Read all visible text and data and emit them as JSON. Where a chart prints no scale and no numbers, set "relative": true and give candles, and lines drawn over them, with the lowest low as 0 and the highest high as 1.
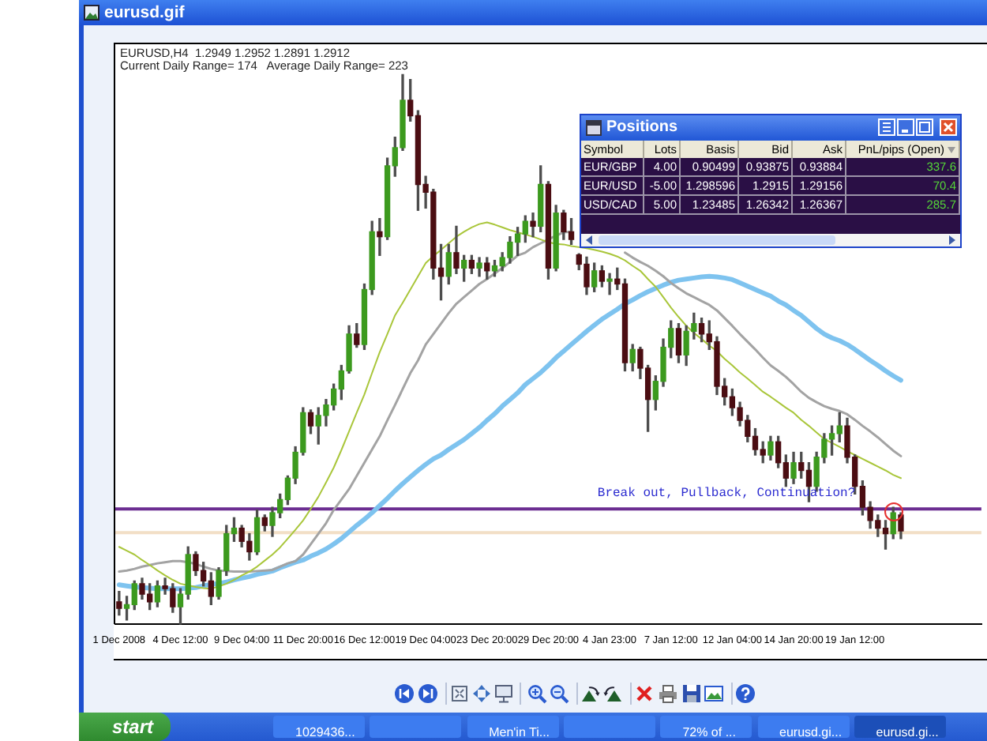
{
  "chart_data": [
    {
      "type": "candlestick",
      "title": "EURUSD,H4  1.2949 1.2952 1.2891 1.2912",
      "subtitle": "Current Daily Range= 174   Average Daily Range= 223",
      "relative": true,
      "categories": [
        "1 Dec 2008",
        null,
        null,
        null,
        null,
        null,
        null,
        null,
        "4 Dec 12:00",
        null,
        null,
        null,
        null,
        null,
        null,
        null,
        "9 Dec 04:00",
        null,
        null,
        null,
        null,
        null,
        null,
        null,
        "11 Dec 20:00",
        null,
        null,
        null,
        null,
        null,
        null,
        null,
        "16 Dec 12:00",
        null,
        null,
        null,
        null,
        null,
        null,
        null,
        "19 Dec 04:00",
        null,
        null,
        null,
        null,
        null,
        null,
        null,
        "23 Dec 20:00",
        null,
        null,
        null,
        null,
        null,
        null,
        null,
        "29 Dec 20:00",
        null,
        null,
        null,
        null,
        null,
        null,
        null,
        "4 Jan 23:00",
        null,
        null,
        null,
        null,
        null,
        null,
        null,
        "7 Jan 12:00",
        null,
        null,
        null,
        null,
        null,
        null,
        null,
        "12 Jan 04:00",
        null,
        null,
        null,
        null,
        null,
        null,
        null,
        "14 Jan 20:00",
        null,
        null,
        null,
        null,
        null,
        null,
        null,
        "19 Jan 12:00",
        null,
        null,
        null,
        null,
        null,
        null,
        null,
        null,
        null,
        null,
        null,
        null,
        null,
        null,
        null,
        null
      ],
      "ohlc": [
        [
          0.041,
          0.06,
          0.017,
          0.029
        ],
        [
          0.029,
          0.051,
          0.008,
          0.036
        ],
        [
          0.036,
          0.079,
          0.027,
          0.074
        ],
        [
          0.074,
          0.084,
          0.046,
          0.055
        ],
        [
          0.055,
          0.074,
          0.027,
          0.041
        ],
        [
          0.041,
          0.079,
          0.032,
          0.07
        ],
        [
          0.07,
          0.084,
          0.055,
          0.065
        ],
        [
          0.065,
          0.074,
          0.022,
          0.032
        ],
        [
          0.032,
          0.065,
          0,
          0.055
        ],
        [
          0.055,
          0.141,
          0.046,
          0.127
        ],
        [
          0.127,
          0.132,
          0.089,
          0.098
        ],
        [
          0.098,
          0.113,
          0.07,
          0.079
        ],
        [
          0.079,
          0.094,
          0.036,
          0.051
        ],
        [
          0.051,
          0.103,
          0.046,
          0.098
        ],
        [
          0.098,
          0.18,
          0.089,
          0.165
        ],
        [
          0.165,
          0.194,
          0.151,
          0.175
        ],
        [
          0.175,
          0.18,
          0.141,
          0.151
        ],
        [
          0.151,
          0.165,
          0.117,
          0.132
        ],
        [
          0.132,
          0.208,
          0.127,
          0.194
        ],
        [
          0.194,
          0.199,
          0.17,
          0.18
        ],
        [
          0.18,
          0.213,
          0.16,
          0.203
        ],
        [
          0.203,
          0.237,
          0.194,
          0.227
        ],
        [
          0.227,
          0.27,
          0.218,
          0.266
        ],
        [
          0.266,
          0.323,
          0.256,
          0.313
        ],
        [
          0.313,
          0.394,
          0.308,
          0.385
        ],
        [
          0.385,
          0.39,
          0.347,
          0.361
        ],
        [
          0.361,
          0.394,
          0.328,
          0.38
        ],
        [
          0.38,
          0.409,
          0.361,
          0.399
        ],
        [
          0.399,
          0.437,
          0.39,
          0.428
        ],
        [
          0.428,
          0.471,
          0.409,
          0.461
        ],
        [
          0.461,
          0.543,
          0.457,
          0.528
        ],
        [
          0.528,
          0.547,
          0.504,
          0.509
        ],
        [
          0.509,
          0.619,
          0.5,
          0.609
        ],
        [
          0.609,
          0.733,
          0.6,
          0.714
        ],
        [
          0.714,
          0.738,
          0.671,
          0.705
        ],
        [
          0.705,
          0.848,
          0.7,
          0.834
        ],
        [
          0.834,
          0.886,
          0.815,
          0.867
        ],
        [
          0.867,
          1,
          0.862,
          0.953
        ],
        [
          0.953,
          0.991,
          0.915,
          0.925
        ],
        [
          0.925,
          0.934,
          0.753,
          0.8
        ],
        [
          0.8,
          0.815,
          0.757,
          0.786
        ],
        [
          0.786,
          0.791,
          0.628,
          0.648
        ],
        [
          0.648,
          0.691,
          0.59,
          0.633
        ],
        [
          0.633,
          0.691,
          0.619,
          0.676
        ],
        [
          0.676,
          0.724,
          0.638,
          0.648
        ],
        [
          0.648,
          0.671,
          0.624,
          0.662
        ],
        [
          0.662,
          0.671,
          0.638,
          0.648
        ],
        [
          0.648,
          0.667,
          0.633,
          0.657
        ],
        [
          0.657,
          0.667,
          0.628,
          0.643
        ],
        [
          0.643,
          0.662,
          0.633,
          0.652
        ],
        [
          0.652,
          0.676,
          0.643,
          0.667
        ],
        [
          0.667,
          0.705,
          0.657,
          0.695
        ],
        [
          0.695,
          0.722,
          0.671,
          0.71
        ],
        [
          0.71,
          0.743,
          0.695,
          0.733
        ],
        [
          0.733,
          0.748,
          0.705,
          0.724
        ],
        [
          0.724,
          0.834,
          0.714,
          0.8
        ],
        [
          0.8,
          0.805,
          0.628,
          0.648
        ],
        [
          0.648,
          0.762,
          0.643,
          0.748
        ],
        [
          0.748,
          0.753,
          0.7,
          0.714
        ],
        [
          0.714,
          0.738,
          0.691,
          0.7
        ],
        [
          0.672,
          0.674,
          0.645,
          0.655
        ],
        [
          0.655,
          0.668,
          0.6,
          0.614
        ],
        [
          0.614,
          0.657,
          0.605,
          0.643
        ],
        [
          0.643,
          0.652,
          0.614,
          0.624
        ],
        [
          0.624,
          0.638,
          0.6,
          0.628
        ],
        [
          0.628,
          0.648,
          0.609,
          0.619
        ],
        [
          0.619,
          0.628,
          0.461,
          0.476
        ],
        [
          0.476,
          0.509,
          0.461,
          0.5
        ],
        [
          0.5,
          0.504,
          0.447,
          0.466
        ],
        [
          0.466,
          0.471,
          0.351,
          0.409
        ],
        [
          0.409,
          0.452,
          0.39,
          0.442
        ],
        [
          0.442,
          0.519,
          0.433,
          0.504
        ],
        [
          0.504,
          0.552,
          0.485,
          0.538
        ],
        [
          0.538,
          0.547,
          0.476,
          0.49
        ],
        [
          0.49,
          0.543,
          0.471,
          0.533
        ],
        [
          0.533,
          0.566,
          0.519,
          0.547
        ],
        [
          0.547,
          0.557,
          0.514,
          0.528
        ],
        [
          0.528,
          0.552,
          0.5,
          0.514
        ],
        [
          0.514,
          0.523,
          0.418,
          0.433
        ],
        [
          0.433,
          0.447,
          0.399,
          0.414
        ],
        [
          0.414,
          0.428,
          0.38,
          0.394
        ],
        [
          0.394,
          0.404,
          0.361,
          0.371
        ],
        [
          0.371,
          0.38,
          0.332,
          0.342
        ],
        [
          0.342,
          0.356,
          0.308,
          0.318
        ],
        [
          0.318,
          0.332,
          0.294,
          0.308
        ],
        [
          0.308,
          0.342,
          0.299,
          0.332
        ],
        [
          0.332,
          0.342,
          0.285,
          0.294
        ],
        [
          0.294,
          0.308,
          0.251,
          0.266
        ],
        [
          0.266,
          0.313,
          0.256,
          0.294
        ],
        [
          0.294,
          0.313,
          0.266,
          0.28
        ],
        [
          0.28,
          0.294,
          0.223,
          0.251
        ],
        [
          0.251,
          0.313,
          0.242,
          0.304
        ],
        [
          0.304,
          0.347,
          0.294,
          0.337
        ],
        [
          0.337,
          0.361,
          0.308,
          0.347
        ],
        [
          0.347,
          0.385,
          0.332,
          0.361
        ],
        [
          0.361,
          0.375,
          0.294,
          0.304
        ],
        [
          0.304,
          0.308,
          0.237,
          0.251
        ],
        [
          0.251,
          0.261,
          0.199,
          0.213
        ],
        [
          0.213,
          0.223,
          0.175,
          0.189
        ],
        [
          0.189,
          0.199,
          0.16,
          0.175
        ],
        [
          0.175,
          0.189,
          0.137,
          0.165
        ],
        [
          0.165,
          0.213,
          0.156,
          0.203
        ],
        [
          0.199,
          0.203,
          0.156,
          0.17
        ],
        null,
        null,
        null,
        null,
        null,
        null,
        null,
        null,
        null,
        null
      ],
      "series": [
        {
          "type": "line",
          "color": "#a9c63a",
          "values": [
            0.141,
            0.134,
            0.127,
            0.117,
            0.108,
            0.098,
            0.089,
            0.081,
            0.074,
            0.071,
            0.068,
            0.066,
            0.065,
            0.069,
            0.074,
            0.081,
            0.089,
            0.096,
            0.105,
            0.116,
            0.127,
            0.14,
            0.156,
            0.172,
            0.189,
            0.21,
            0.232,
            0.258,
            0.285,
            0.317,
            0.351,
            0.385,
            0.418,
            0.457,
            0.495,
            0.528,
            0.562,
            0.585,
            0.609,
            0.633,
            0.657,
            0.67,
            0.681,
            0.693,
            0.705,
            0.714,
            0.722,
            0.728,
            0.731,
            0.727,
            0.722,
            0.717,
            0.713,
            0.709,
            0.705,
            0.7,
            0.695,
            0.692,
            0.691,
            0.688,
            0.686,
            0.684,
            0.681,
            0.678,
            0.674,
            0.669,
            0.662,
            0.652,
            0.643,
            0.628,
            0.614,
            0.595,
            0.576,
            0.559,
            0.543,
            0.53,
            0.519,
            0.507,
            0.497,
            0.483,
            0.471,
            0.458,
            0.447,
            0.435,
            0.423,
            0.414,
            0.404,
            0.394,
            0.385,
            0.372,
            0.361,
            0.349,
            0.337,
            0.33,
            0.323,
            0.315,
            0.308,
            0.301,
            0.294,
            0.287,
            0.28,
            0.272,
            0.266,
            null,
            null,
            null,
            null,
            null,
            null,
            null,
            null,
            null,
            null
          ]
        },
        {
          "type": "line",
          "color": "#a3a3a3",
          "values": [
            0.096,
            0.098,
            0.101,
            0.105,
            0.108,
            0.111,
            0.113,
            0.115,
            0.115,
            0.113,
            0.11,
            0.105,
            0.101,
            0.098,
            0.097,
            0.096,
            0.096,
            0.096,
            0.097,
            0.098,
            0.099,
            0.105,
            0.111,
            0.115,
            0.127,
            0.146,
            0.165,
            0.184,
            0.208,
            0.227,
            0.246,
            0.27,
            0.294,
            0.318,
            0.342,
            0.371,
            0.399,
            0.428,
            0.457,
            0.48,
            0.509,
            0.528,
            0.547,
            0.566,
            0.583,
            0.595,
            0.607,
            0.619,
            0.628,
            0.638,
            0.648,
            0.659,
            0.671,
            0.676,
            0.686,
            0.693,
            0.7,
            0.707,
            0.713,
            0.714,
            null,
            null,
            null,
            null,
            null,
            null,
            0.676,
            0.667,
            0.659,
            0.652,
            0.643,
            0.633,
            0.621,
            0.611,
            0.602,
            0.595,
            0.588,
            0.581,
            0.571,
            0.557,
            0.543,
            0.528,
            0.514,
            0.5,
            0.485,
            0.471,
            0.461,
            0.45,
            0.437,
            0.423,
            0.412,
            0.404,
            0.397,
            0.392,
            0.388,
            0.382,
            0.372,
            0.361,
            0.351,
            0.34,
            0.328,
            0.316,
            0.306,
            null,
            null,
            null,
            null,
            null,
            null,
            null,
            null,
            null,
            null
          ]
        },
        {
          "type": "line",
          "color": "#7ec3ef",
          "values": [
            0.072,
            0.07,
            0.068,
            0.067,
            0.066,
            0.065,
            0.065,
            0.065,
            0.065,
            0.066,
            0.067,
            0.07,
            0.073,
            0.074,
            0.077,
            0.081,
            0.084,
            0.087,
            0.091,
            0.094,
            0.097,
            0.103,
            0.108,
            0.113,
            0.117,
            0.124,
            0.13,
            0.137,
            0.146,
            0.156,
            0.168,
            0.18,
            0.191,
            0.203,
            0.216,
            0.229,
            0.243,
            0.256,
            0.268,
            0.28,
            0.291,
            0.301,
            0.308,
            0.318,
            0.327,
            0.336,
            0.347,
            0.358,
            0.371,
            0.383,
            0.397,
            0.409,
            0.421,
            0.436,
            0.447,
            0.458,
            0.471,
            0.485,
            0.497,
            0.509,
            0.521,
            0.533,
            0.544,
            0.555,
            0.564,
            0.573,
            0.583,
            0.59,
            0.598,
            0.605,
            0.611,
            0.617,
            0.622,
            0.626,
            0.628,
            0.63,
            0.632,
            0.633,
            0.632,
            0.63,
            0.627,
            0.621,
            0.615,
            0.609,
            0.603,
            0.597,
            0.588,
            0.581,
            0.571,
            0.562,
            0.55,
            0.538,
            0.528,
            0.521,
            0.516,
            0.509,
            0.5,
            0.49,
            0.48,
            0.471,
            0.461,
            0.452,
            0.444,
            null,
            null,
            null,
            null,
            null,
            null,
            null,
            null,
            null,
            null
          ]
        }
      ],
      "ref_lines": [
        {
          "axis": "y",
          "value": 0.21,
          "color": "#6b2c91"
        },
        {
          "axis": "y",
          "value": 0.167,
          "color": "#f2dfc6"
        }
      ],
      "annotations": [
        "Break out, Pullback, Continuation?"
      ]
    },
    {
      "type": "other",
      "title": "Positions",
      "categories": [
        "Symbol",
        "Lots",
        "Basis",
        "Bid",
        "Ask",
        "PnL/pips (Open)"
      ],
      "cell_labels": [
        [
          "EUR/GBP",
          "4.00",
          "0.90499",
          "0.93875",
          "0.93884",
          "337.6"
        ],
        [
          "EUR/USD",
          "-5.00",
          "1.298596",
          "1.2915",
          "1.29156",
          "70.4"
        ],
        [
          "USD/CAD",
          "5.00",
          "1.23485",
          "1.26342",
          "1.26367",
          "285.7"
        ]
      ]
    },
    {
      "type": "other",
      "title": "eurusd.gif",
      "categories": [
        "1029436...",
        null,
        "Men'in Ti...",
        null,
        "72% of ...",
        "eurusd.gi...",
        "eurusd.gi..."
      ],
      "annotations": [
        "start"
      ]
    }
  ]
}
